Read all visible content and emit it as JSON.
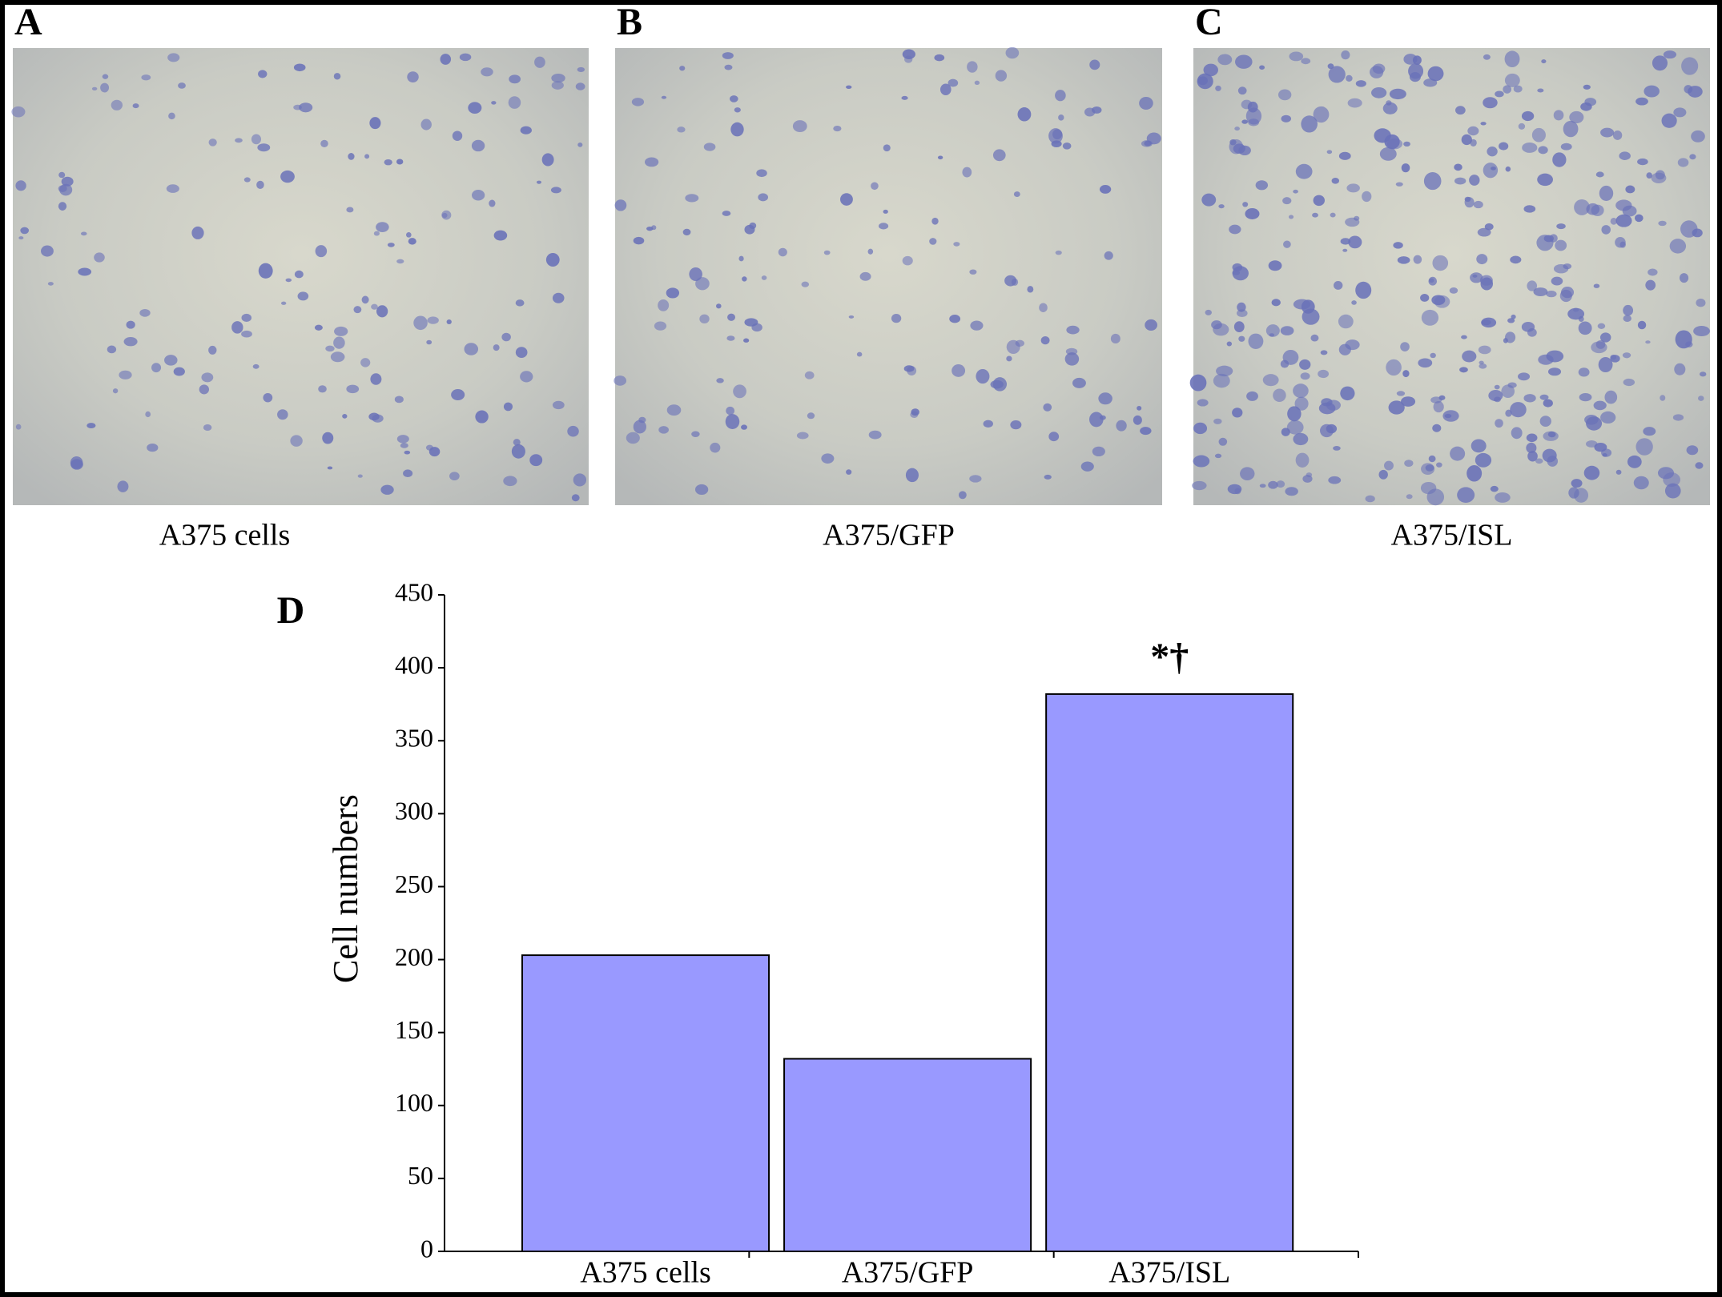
{
  "panels": [
    {
      "letter": "A",
      "caption": "A375 cells"
    },
    {
      "letter": "B",
      "caption": "A375/GFP"
    },
    {
      "letter": "C",
      "caption": "A375/ISL"
    }
  ],
  "chart_data": {
    "type": "bar",
    "panel_label": "D",
    "ylabel": "Cell numbers",
    "categories": [
      "A375 cells",
      "A375/GFP",
      "A375/ISL"
    ],
    "values": [
      203,
      132,
      382
    ],
    "annotations": [
      null,
      null,
      "*†"
    ],
    "color": "#9999ff",
    "ylim": [
      0,
      450
    ],
    "yticks": [
      0,
      50,
      100,
      150,
      200,
      250,
      300,
      350,
      400,
      450
    ]
  }
}
